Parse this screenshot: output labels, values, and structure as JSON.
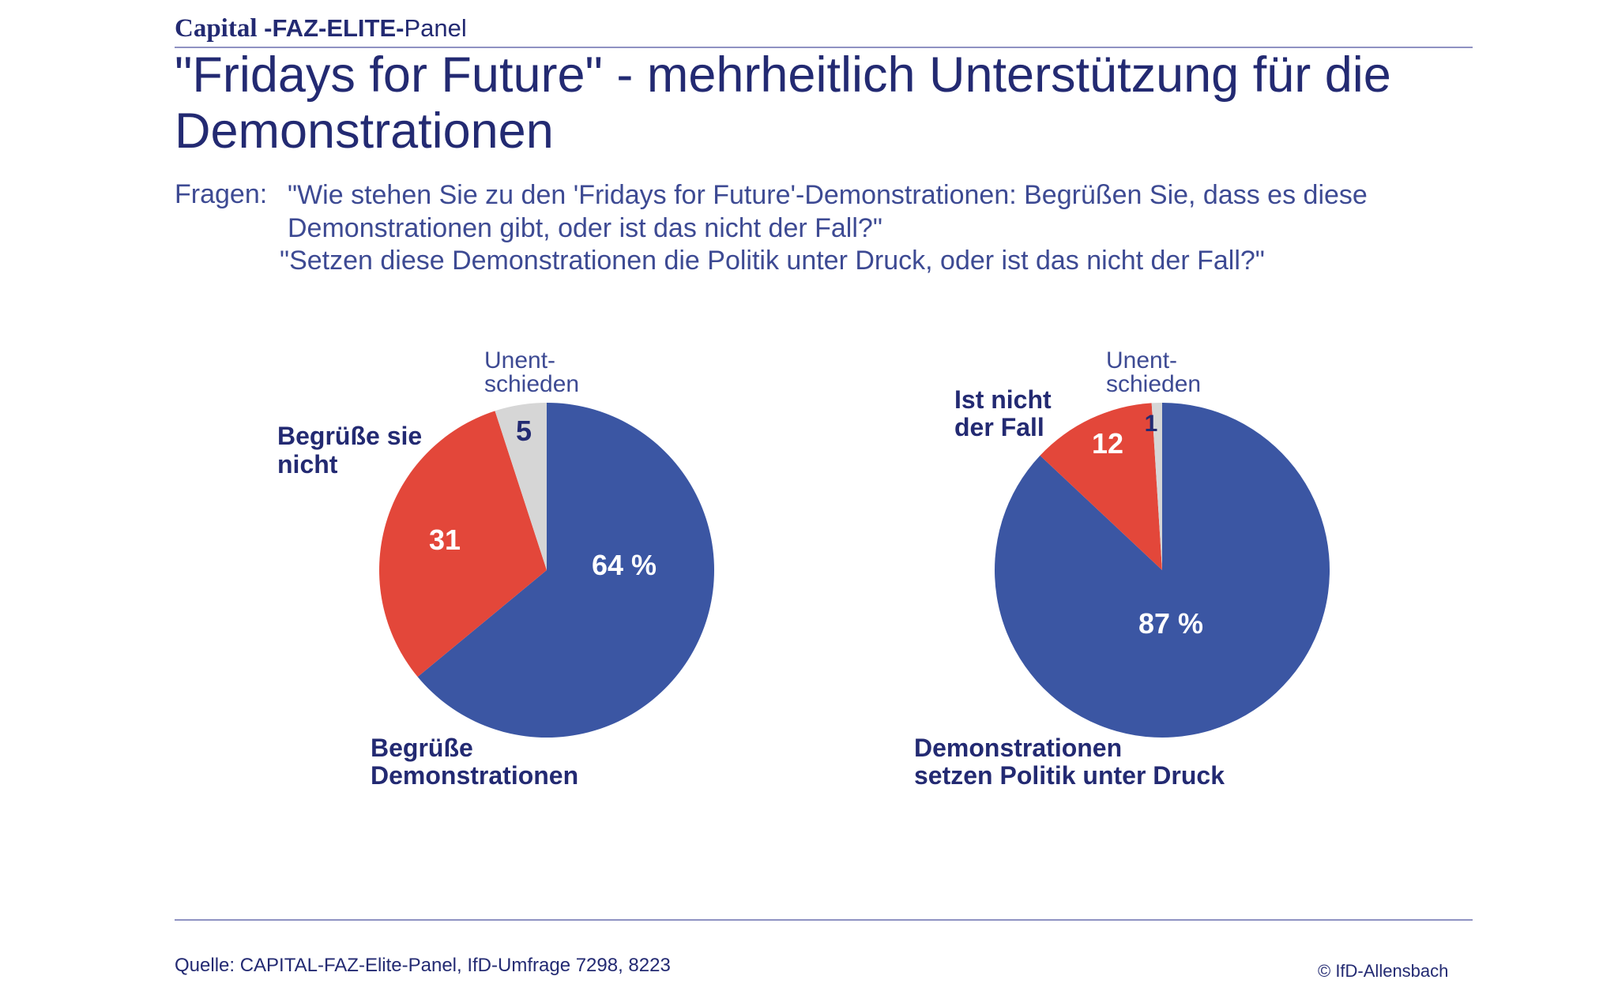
{
  "header": {
    "brand_capital": "Capital",
    "brand_faz": " -FAZ-ELITE-",
    "brand_panel": "Panel"
  },
  "title": "\"Fridays for Future\" - mehrheitlich Unterstützung für die Demonstrationen",
  "questions": {
    "prefix": "Fragen:",
    "q1": "\"Wie stehen Sie zu den 'Fridays for Future'-Demonstrationen: Begrüßen Sie, dass es diese Demonstrationen gibt, oder ist das nicht der Fall?\"",
    "q2": "\"Setzen diese Demonstrationen die Politik unter Druck, oder ist das nicht der Fall?\""
  },
  "colors": {
    "blue": "#3b56a3",
    "red": "#e3473a",
    "grey": "#d6d6d6",
    "text": "#232a72"
  },
  "chart_data": [
    {
      "type": "pie",
      "start": "top",
      "direction": "clockwise",
      "slices": [
        {
          "label": [
            "Begrüße",
            "Demonstrationen"
          ],
          "value": 64,
          "value_label": "64 %",
          "color": "#3b56a3"
        },
        {
          "label": [
            "Begrüße sie",
            "nicht"
          ],
          "value": 31,
          "value_label": "31",
          "color": "#e3473a"
        },
        {
          "label": [
            "Unent-",
            "schieden"
          ],
          "value": 5,
          "value_label": "5",
          "color": "#d6d6d6"
        }
      ]
    },
    {
      "type": "pie",
      "start": "top",
      "direction": "clockwise",
      "slices": [
        {
          "label": [
            "Demonstrationen",
            "setzen Politik unter Druck"
          ],
          "value": 87,
          "value_label": "87 %",
          "color": "#3b56a3"
        },
        {
          "label": [
            "Ist nicht",
            "der Fall"
          ],
          "value": 12,
          "value_label": "12",
          "color": "#e3473a"
        },
        {
          "label": [
            "Unent-",
            "schieden"
          ],
          "value": 1,
          "value_label": "1",
          "color": "#d6d6d6"
        }
      ]
    }
  ],
  "footer": {
    "source": "Quelle: CAPITAL-FAZ-Elite-Panel, IfD-Umfrage 7298, 8223",
    "copyright": "© IfD-Allensbach"
  }
}
